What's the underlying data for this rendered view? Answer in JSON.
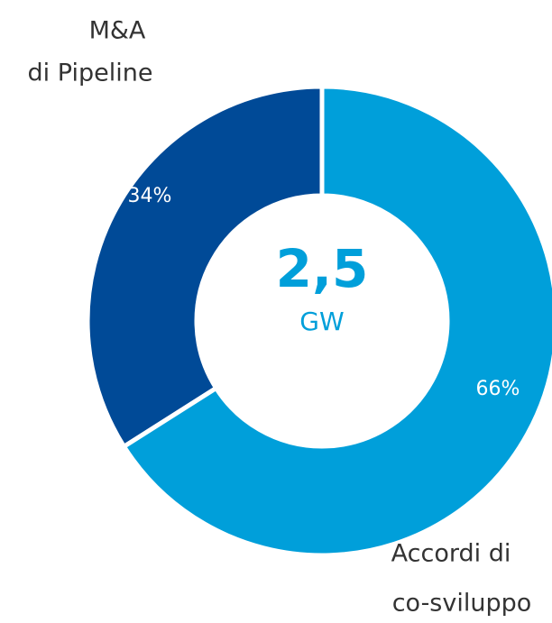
{
  "chart_data": {
    "type": "donut",
    "categories": [
      [
        "Accordi di",
        "co-sviluppo"
      ],
      [
        "M&A",
        "di Pipeline"
      ]
    ],
    "values": [
      66,
      34
    ],
    "value_labels": [
      "66%",
      "34%"
    ],
    "colors": [
      "#009fda",
      "#004a97"
    ],
    "center_value": "2,5",
    "center_unit": "GW"
  }
}
